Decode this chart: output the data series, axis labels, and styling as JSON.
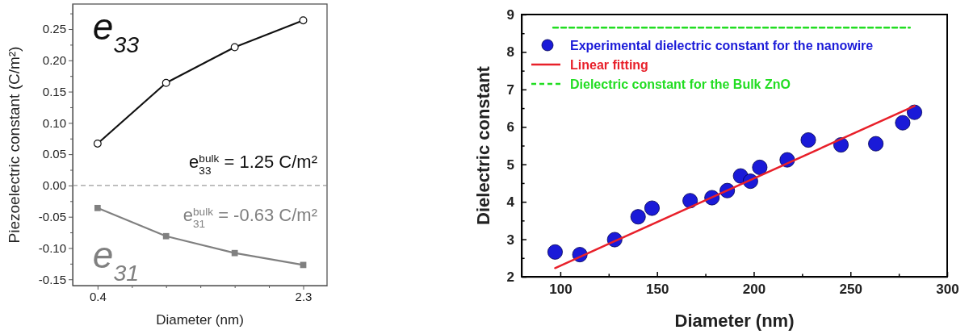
{
  "chart_data": [
    {
      "type": "line",
      "xlabel": "Diameter (nm)",
      "ylabel": "Piezoelectric constant (C/m²)",
      "x": [
        0.4,
        1.033,
        1.667,
        2.3
      ],
      "series": [
        {
          "name": "e$_{33}$",
          "color": "#111111",
          "marker": "circle",
          "values": [
            0.067,
            0.164,
            0.221,
            0.264
          ]
        },
        {
          "name": "e$_{31}$",
          "color": "#808080",
          "marker": "square",
          "values": [
            -0.036,
            -0.081,
            -0.108,
            -0.127
          ]
        }
      ],
      "xlim": [
        0.17,
        2.52
      ],
      "xticks": [
        0.4,
        {
          "value": 0.717,
          "label": null
        },
        {
          "value": 1.033,
          "label": null
        },
        {
          "value": 1.35,
          "label": null
        },
        {
          "value": 1.667,
          "label": null
        },
        {
          "value": 1.983,
          "label": null
        },
        2.3
      ],
      "ylim": [
        -0.16,
        0.29
      ],
      "yticks": [
        {
          "value": -0.15,
          "label": "-0.15"
        },
        {
          "value": -0.125,
          "label": null
        },
        {
          "value": -0.1,
          "label": "-0.10"
        },
        {
          "value": -0.075,
          "label": null
        },
        -0.05,
        {
          "value": -0.025,
          "label": null
        },
        {
          "value": 0,
          "label": "0.00"
        },
        {
          "value": 0.025,
          "label": null
        },
        0.05,
        {
          "value": 0.075,
          "label": null
        },
        {
          "value": 0.1,
          "label": "0.10"
        },
        {
          "value": 0.125,
          "label": null
        },
        0.15,
        {
          "value": 0.175,
          "label": null
        },
        {
          "value": 0.2,
          "label": "0.20"
        },
        {
          "value": 0.225,
          "label": null
        },
        0.25,
        {
          "value": 0.275,
          "label": null
        }
      ],
      "ref_lines": [
        {
          "axis": "y",
          "value": 0,
          "color": "#808080",
          "line_style": "dashed"
        }
      ],
      "annotations": [
        "e$^{bulk}$$_{33}$ =  1.25 C/m²",
        "e$^{bulk}$$_{31}$ = -0.63 C/m²"
      ],
      "legend": false
    },
    {
      "type": "scatter",
      "xlabel": "Diameter (nm)",
      "ylabel": "Dielectric constant",
      "series": [
        {
          "name": "Experimental dielectric constant for the nanowire",
          "color": "#1a1ad8",
          "marker": "circle",
          "x": [
            97.3,
            110.1,
            128.1,
            140.2,
            147.4,
            167.1,
            178.4,
            186.3,
            193.2,
            198.3,
            203.1,
            217.3,
            228.2,
            245.1,
            263.1,
            277.0,
            283.1
          ],
          "values": [
            2.66,
            2.59,
            2.99,
            3.6,
            3.83,
            4.03,
            4.11,
            4.3,
            4.69,
            4.55,
            4.92,
            5.12,
            5.65,
            5.52,
            5.55,
            6.11,
            6.39
          ]
        },
        {
          "name": "Linear fitting",
          "type": "line",
          "color": "#e8202a",
          "line_style": "solid",
          "x": [
            97.3,
            283.1
          ],
          "values": [
            2.23,
            6.56
          ]
        },
        {
          "name": "Dielectric constant for the Bulk ZnO",
          "type": "line",
          "color": "#22dd22",
          "line_style": "dashed",
          "x": [
            96.3,
            280.7
          ],
          "values": [
            8.65,
            8.65
          ]
        }
      ],
      "xlim": [
        80,
        300
      ],
      "xticks": [
        100,
        {
          "value": 125,
          "label": null
        },
        150,
        {
          "value": 175,
          "label": null
        },
        200,
        {
          "value": 225,
          "label": null
        },
        250,
        {
          "value": 275,
          "label": null
        },
        300
      ],
      "ylim": [
        2,
        9
      ],
      "yticks": [
        2,
        {
          "value": 2.5,
          "label": null
        },
        3,
        {
          "value": 3.5,
          "label": null
        },
        4,
        {
          "value": 4.5,
          "label": null
        },
        5,
        {
          "value": 5.5,
          "label": null
        },
        6,
        {
          "value": 6.5,
          "label": null
        },
        7,
        {
          "value": 7.5,
          "label": null
        },
        8,
        {
          "value": 8.5,
          "label": null
        },
        9
      ],
      "legend": "top left"
    }
  ]
}
